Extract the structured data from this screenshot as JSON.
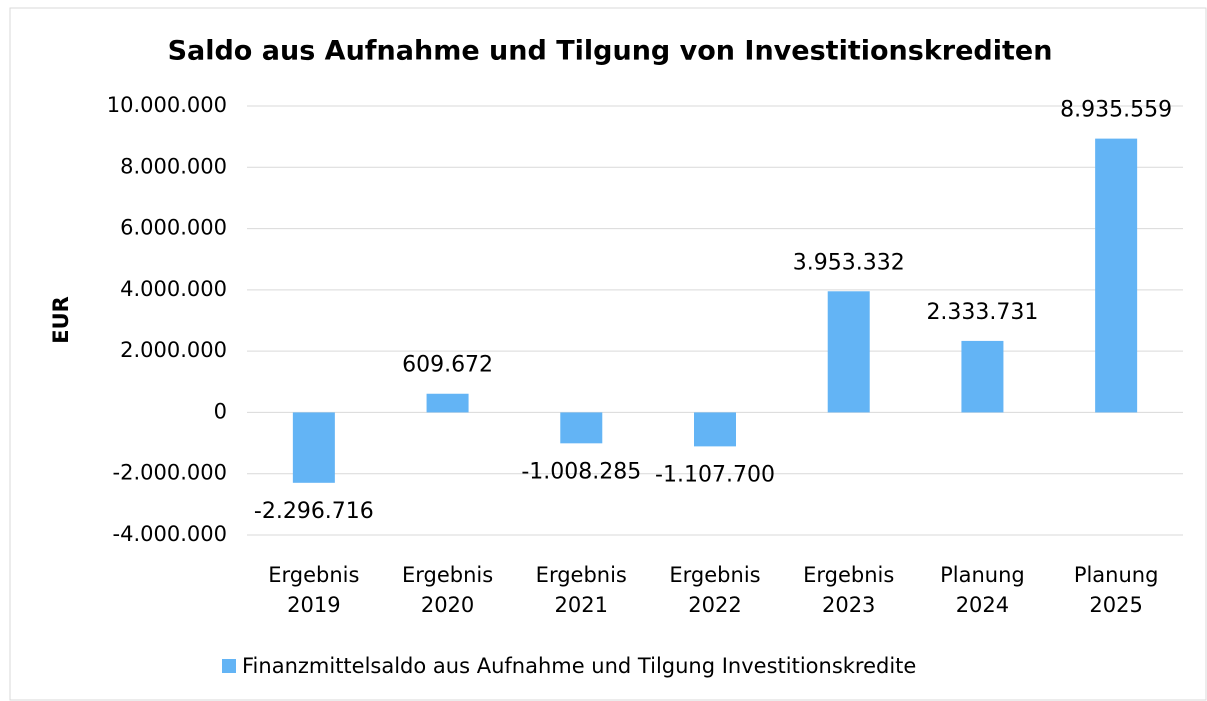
{
  "chart_data": {
    "type": "bar",
    "title": "Saldo aus Aufnahme und Tilgung von Investitionskrediten",
    "y_label": "EUR",
    "categories": [
      "Ergebnis 2019",
      "Ergebnis 2020",
      "Ergebnis 2021",
      "Ergebnis 2022",
      "Ergebnis 2023",
      "Planung 2024",
      "Planung 2025"
    ],
    "series": [
      {
        "name": "Finanzmittelsaldo aus Aufnahme und Tilgung Investitionskredite",
        "color": "#63b4f5",
        "values": [
          -2296716,
          609672,
          -1008285,
          -1107700,
          3953332,
          2333731,
          8935559
        ],
        "value_labels": [
          "-2.296.716",
          "609.672",
          "-1.008.285",
          "-1.107.700",
          "3.953.332",
          "2.333.731",
          "8.935.559"
        ]
      }
    ],
    "ylim": [
      -4000000,
      10000000
    ],
    "yticks": [
      {
        "value": -4000000,
        "label": "-4.000.000"
      },
      {
        "value": -2000000,
        "label": "-2.000.000"
      },
      0,
      {
        "value": 2000000,
        "label": "2.000.000"
      },
      {
        "value": 4000000,
        "label": "4.000.000"
      },
      {
        "value": 6000000,
        "label": "6.000.000"
      },
      {
        "value": 8000000,
        "label": "8.000.000"
      },
      {
        "value": 10000000,
        "label": "10.000.000"
      }
    ],
    "grid": true,
    "legend": "bottom"
  }
}
